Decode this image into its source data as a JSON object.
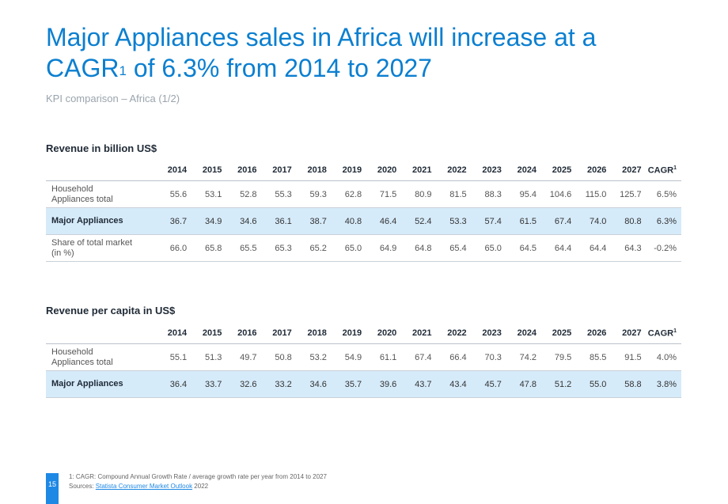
{
  "title": {
    "line1": "Major Appliances sales in Africa will increase at a",
    "line2_prefix": "CAGR",
    "line2_sup": "1",
    "line2_suffix": " of 6.3% from 2014 to 2027"
  },
  "subtitle": "KPI comparison – Africa (1/2)",
  "columns": {
    "years": [
      "2014",
      "2015",
      "2016",
      "2017",
      "2018",
      "2019",
      "2020",
      "2021",
      "2022",
      "2023",
      "2024",
      "2025",
      "2026",
      "2027"
    ],
    "cagr_label": "CAGR",
    "cagr_sup": "1"
  },
  "revenue": {
    "title": "Revenue in billion US$",
    "rows": [
      {
        "label_line1": "Household",
        "label_line2": "Appliances total",
        "values": [
          "55.6",
          "53.1",
          "52.8",
          "55.3",
          "59.3",
          "62.8",
          "71.5",
          "80.9",
          "81.5",
          "88.3",
          "95.4",
          "104.6",
          "115.0",
          "125.7",
          "6.5%"
        ]
      },
      {
        "label_line1": "Major Appliances",
        "label_line2": "",
        "values": [
          "36.7",
          "34.9",
          "34.6",
          "36.1",
          "38.7",
          "40.8",
          "46.4",
          "52.4",
          "53.3",
          "57.4",
          "61.5",
          "67.4",
          "74.0",
          "80.8",
          "6.3%"
        ]
      },
      {
        "label_line1": "Share of total market",
        "label_line2": "(in %)",
        "values": [
          "66.0",
          "65.8",
          "65.5",
          "65.3",
          "65.2",
          "65.0",
          "64.9",
          "64.8",
          "65.4",
          "65.0",
          "64.5",
          "64.4",
          "64.4",
          "64.3",
          "-0.2%"
        ]
      }
    ]
  },
  "per_capita": {
    "title": "Revenue per capita in US$",
    "rows": [
      {
        "label_line1": "Household",
        "label_line2": "Appliances total",
        "values": [
          "55.1",
          "51.3",
          "49.7",
          "50.8",
          "53.2",
          "54.9",
          "61.1",
          "67.4",
          "66.4",
          "70.3",
          "74.2",
          "79.5",
          "85.5",
          "91.5",
          "4.0%"
        ]
      },
      {
        "label_line1": "Major Appliances",
        "label_line2": "",
        "values": [
          "36.4",
          "33.7",
          "32.6",
          "33.2",
          "34.6",
          "35.7",
          "39.6",
          "43.7",
          "43.4",
          "45.7",
          "47.8",
          "51.2",
          "55.0",
          "58.8",
          "3.8%"
        ]
      }
    ]
  },
  "footer": {
    "page_number": "15",
    "footnote": "1: CAGR: Compound Annual Growth Rate / average growth rate per year from 2014 to 2027",
    "sources_prefix": "Sources: ",
    "sources_link": "Statista Consumer Market Outlook",
    "sources_suffix": " 2022"
  },
  "colors": {
    "title": "#0b7fd0",
    "highlight_row": "#d6ebfa",
    "page_badge": "#1e88e5"
  }
}
